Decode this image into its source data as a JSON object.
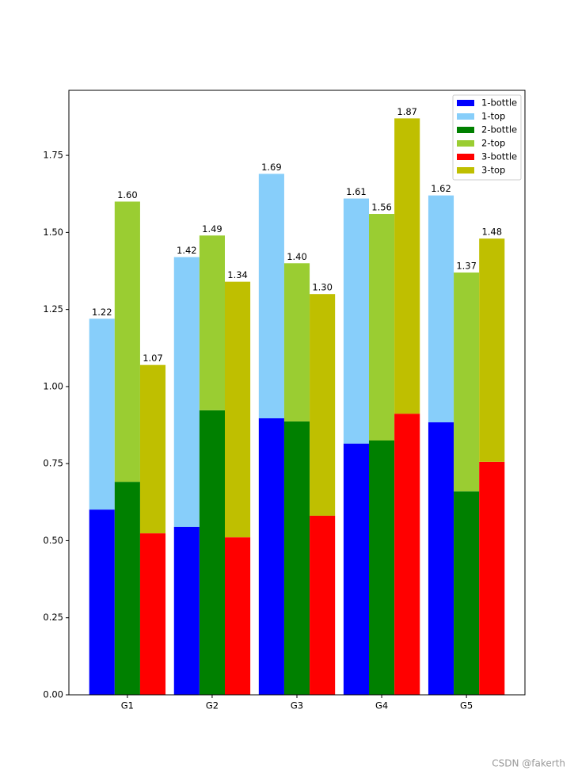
{
  "chart_data": {
    "type": "stacked_grouped_bar",
    "categories": [
      "G1",
      "G2",
      "G3",
      "G4",
      "G5"
    ],
    "stacks": [
      {
        "series": [
          {
            "name": "1-bottle",
            "color": "#0000ff",
            "values": [
              0.601,
              0.545,
              0.897,
              0.815,
              0.884
            ]
          },
          {
            "name": "1-top",
            "color": "#87cefa",
            "values": [
              0.619,
              0.875,
              0.793,
              0.795,
              0.736
            ]
          }
        ],
        "totals": [
          1.22,
          1.42,
          1.69,
          1.61,
          1.62
        ],
        "total_labels": [
          "1.22",
          "1.42",
          "1.69",
          "1.61",
          "1.62"
        ]
      },
      {
        "series": [
          {
            "name": "2-bottle",
            "color": "#008000",
            "values": [
              0.691,
              0.923,
              0.887,
              0.825,
              0.66
            ]
          },
          {
            "name": "2-top",
            "color": "#9acd32",
            "values": [
              0.909,
              0.567,
              0.513,
              0.735,
              0.71
            ]
          }
        ],
        "totals": [
          1.6,
          1.49,
          1.4,
          1.56,
          1.37
        ],
        "total_labels": [
          "1.60",
          "1.49",
          "1.40",
          "1.56",
          "1.37"
        ]
      },
      {
        "series": [
          {
            "name": "3-bottle",
            "color": "#ff0000",
            "values": [
              0.524,
              0.511,
              0.581,
              0.912,
              0.756
            ]
          },
          {
            "name": "3-top",
            "color": "#bfbf00",
            "values": [
              0.546,
              0.829,
              0.719,
              0.958,
              0.724
            ]
          }
        ],
        "totals": [
          1.07,
          1.34,
          1.3,
          1.87,
          1.48
        ],
        "total_labels": [
          "1.07",
          "1.34",
          "1.30",
          "1.87",
          "1.48"
        ]
      }
    ],
    "ylim": [
      0,
      1.961
    ],
    "yticks": [
      {
        "value": 0,
        "label": "0.00"
      },
      {
        "value": 0.25,
        "label": "0.25"
      },
      {
        "value": 0.5,
        "label": "0.50"
      },
      {
        "value": 0.75,
        "label": "0.75"
      },
      {
        "value": 1,
        "label": "1.00"
      },
      {
        "value": 1.25,
        "label": "1.25"
      },
      {
        "value": 1.5,
        "label": "1.50"
      },
      {
        "value": 1.75,
        "label": "1.75"
      }
    ],
    "legend": "upper right",
    "watermark": "CSDN @fakerth"
  }
}
